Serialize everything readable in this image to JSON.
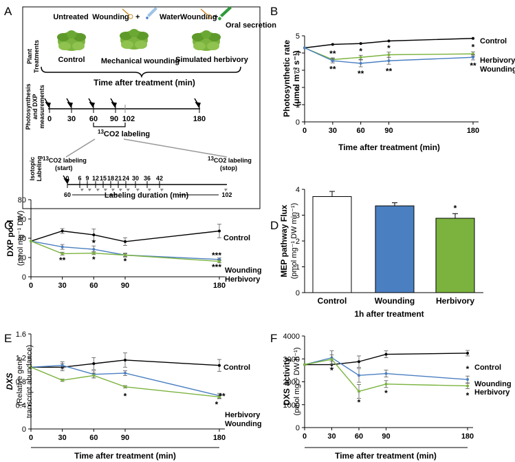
{
  "panel_labels": [
    "A",
    "B",
    "C",
    "D",
    "E",
    "F"
  ],
  "panel_a": {
    "treatments": [
      {
        "name": "Untreated",
        "plant_label": "Control"
      },
      {
        "name": "Wounding",
        "plus": "+",
        "agent": "Water",
        "plant_label": "Mechanical wounding"
      },
      {
        "name": "Wounding",
        "plus": "+",
        "agent": "Oral secretion",
        "plant_label": "Simulated herbivory"
      }
    ],
    "row_plant_treatments": [
      "Plant",
      "Treatments"
    ],
    "time_title": "Time after treatment (min)",
    "row_photosynthesis": [
      "Photosynthesis",
      "and DXP",
      "measurements"
    ],
    "timeline_ticks": [
      "0",
      "30",
      "60",
      "90",
      "102",
      "180"
    ],
    "co2_labeling": "CO2 labeling",
    "co2_sup": "13",
    "row_isotopic": [
      "Isotopic",
      "Labeling"
    ],
    "label_start": [
      "CO2 labeling",
      "(start)"
    ],
    "label_stop": [
      "CO2 labeling",
      "(stop)"
    ],
    "labeling_ticks": [
      "0",
      "6",
      "9",
      "12",
      "15",
      "18",
      "21",
      "24",
      "30",
      "36",
      "42"
    ],
    "labeling_range": [
      "60",
      "102"
    ],
    "labeling_duration": "Labeling duration (min)"
  },
  "colors": {
    "control": "#000000",
    "wounding": "#4a7fc1",
    "herbivory": "#7bb33e"
  },
  "chart_data": [
    {
      "panel": "B",
      "type": "line",
      "ylabel": "Photosynthetic rate",
      "ylabel_unit": "(μmol m⁻² s⁻¹)",
      "xlabel": "Time after treatment (min)",
      "x": [
        0,
        30,
        60,
        90,
        180
      ],
      "x_tick_labels": [
        "0",
        "30",
        "60",
        "90",
        "180"
      ],
      "ylim": [
        0,
        5
      ],
      "y_ticks": [
        0,
        1,
        2,
        3,
        4,
        5
      ],
      "series": [
        {
          "name": "Control",
          "key": "control",
          "values": [
            4.3,
            4.5,
            4.55,
            4.7,
            4.85
          ],
          "errors": [
            0,
            0,
            0,
            0,
            0
          ]
        },
        {
          "name": "Herbivory",
          "key": "herbivory",
          "values": [
            4.3,
            3.62,
            3.75,
            3.9,
            3.95
          ],
          "errors": [
            0,
            0.1,
            0.12,
            0.15,
            0.12
          ]
        },
        {
          "name": "Wounding",
          "key": "wounding",
          "values": [
            4.3,
            3.55,
            3.4,
            3.55,
            3.75
          ],
          "errors": [
            0,
            0.12,
            0.2,
            0.2,
            0.15
          ]
        }
      ],
      "annotations": [
        {
          "text": "**",
          "x": 30,
          "above": "herbivory"
        },
        {
          "text": "**",
          "x": 30,
          "below": "wounding"
        },
        {
          "text": "*",
          "x": 60,
          "above": "herbivory"
        },
        {
          "text": "**",
          "x": 60,
          "below": "wounding"
        },
        {
          "text": "*",
          "x": 90,
          "above": "herbivory"
        },
        {
          "text": "**",
          "x": 90,
          "below": "wounding"
        },
        {
          "text": "*",
          "x": 180,
          "above": "herbivory"
        },
        {
          "text": "**",
          "x": 180,
          "below": "wounding"
        }
      ]
    },
    {
      "panel": "C",
      "type": "line",
      "ylabel": "DXP pool",
      "ylabel_unit": "(pmol mg⁻¹ DW)",
      "xlabel": "",
      "x": [
        0,
        30,
        60,
        90,
        180
      ],
      "x_tick_labels": [
        "0",
        "30",
        "60",
        "90",
        "180"
      ],
      "ylim": [
        0,
        80
      ],
      "y_ticks": [
        0,
        20,
        40,
        60,
        80
      ],
      "series": [
        {
          "name": "Control",
          "key": "control",
          "values": [
            37,
            47.5,
            43.5,
            36.5,
            47.5
          ],
          "errors": [
            0,
            2.5,
            6,
            4,
            7
          ]
        },
        {
          "name": "Wounding",
          "key": "wounding",
          "values": [
            37,
            31,
            28.5,
            22.5,
            18
          ],
          "errors": [
            0,
            2.5,
            3.5,
            2,
            1.5
          ]
        },
        {
          "name": "Herbivory",
          "key": "herbivory",
          "values": [
            37,
            24,
            24.5,
            22.5,
            16
          ],
          "errors": [
            0,
            1.5,
            1.5,
            1.5,
            1.5
          ]
        }
      ],
      "annotations": [
        {
          "text": "**",
          "x": 30
        },
        {
          "text": "*",
          "x": 60
        },
        {
          "text": "*",
          "x": 60
        },
        {
          "text": "*",
          "x": 90
        },
        {
          "text": "***",
          "x": 180
        },
        {
          "text": "***",
          "x": 180
        }
      ]
    },
    {
      "panel": "D",
      "type": "bar",
      "ylabel": "MEP pathway Flux",
      "ylabel_unit": "(pmol mg⁻¹ DW min⁻¹)",
      "xlabel": "1h after treatment",
      "categories": [
        "Control",
        "Wounding",
        "Herbivory"
      ],
      "values": [
        3.72,
        3.36,
        2.88
      ],
      "errors": [
        0.2,
        0.12,
        0.18
      ],
      "bar_colors": [
        "#ffffff",
        "#4a7fc1",
        "#7bb33e"
      ],
      "ylim": [
        0,
        4
      ],
      "y_ticks": [
        0,
        1,
        2,
        3,
        4
      ],
      "annotations": [
        {
          "text": "*",
          "category": "Herbivory"
        }
      ]
    },
    {
      "panel": "E",
      "type": "line",
      "ylabel_italic": "DXS",
      "ylabel": "(Relative gene",
      "ylabel_unit": "transcript abundance)",
      "xlabel": "Time after treatment (min)",
      "x": [
        0,
        30,
        60,
        90,
        180
      ],
      "x_tick_labels": [
        "0",
        "30",
        "60",
        "90",
        "180"
      ],
      "ylim": [
        0,
        1.6
      ],
      "y_ticks": [
        "0",
        "0.4",
        "0.8",
        "1.2",
        "1.6"
      ],
      "series": [
        {
          "name": "Control",
          "key": "control",
          "values": [
            1.04,
            1.04,
            1.1,
            1.16,
            1.07
          ],
          "errors": [
            0,
            0.06,
            0.1,
            0.12,
            0.1
          ]
        },
        {
          "name": "Wounding",
          "key": "wounding",
          "values": [
            1.04,
            1.07,
            0.92,
            0.94,
            0.56
          ],
          "errors": [
            0,
            0.06,
            0.06,
            0.04,
            0.04
          ]
        },
        {
          "name": "Herbivory",
          "key": "herbivory",
          "values": [
            1.04,
            0.82,
            0.9,
            0.71,
            0.54
          ],
          "errors": [
            0,
            0.02,
            0.04,
            0.02,
            0.03
          ]
        }
      ],
      "annotations": [
        {
          "text": "*",
          "x": 90
        },
        {
          "text": "**",
          "x": 180
        },
        {
          "text": "*",
          "x": 180
        }
      ]
    },
    {
      "panel": "F",
      "type": "line",
      "ylabel": "DXS activity",
      "ylabel_unit": "(pmol mg⁻¹ DW h⁻¹)",
      "xlabel": "Time after treatment (min)",
      "x": [
        0,
        30,
        60,
        90,
        180
      ],
      "x_tick_labels": [
        "0",
        "30",
        "60",
        "90",
        "180"
      ],
      "ylim": [
        0,
        4000
      ],
      "y_ticks": [
        0,
        1000,
        2000,
        3000,
        4000
      ],
      "series": [
        {
          "name": "Control",
          "key": "control",
          "values": [
            2750,
            2750,
            2880,
            3200,
            3250
          ],
          "errors": [
            0,
            150,
            250,
            150,
            120
          ]
        },
        {
          "name": "Wounding",
          "key": "wounding",
          "values": [
            2750,
            3050,
            2280,
            2360,
            2100
          ],
          "errors": [
            0,
            300,
            300,
            150,
            150
          ]
        },
        {
          "name": "Herbivory",
          "key": "herbivory",
          "values": [
            2750,
            2980,
            1580,
            1900,
            1820
          ],
          "errors": [
            0,
            200,
            300,
            150,
            120
          ]
        }
      ],
      "annotations": [
        {
          "text": "*",
          "x": 30
        },
        {
          "text": "*",
          "x": 60
        },
        {
          "text": "*",
          "x": 90
        },
        {
          "text": "*",
          "x": 180
        },
        {
          "text": "*",
          "x": 180
        }
      ]
    }
  ]
}
